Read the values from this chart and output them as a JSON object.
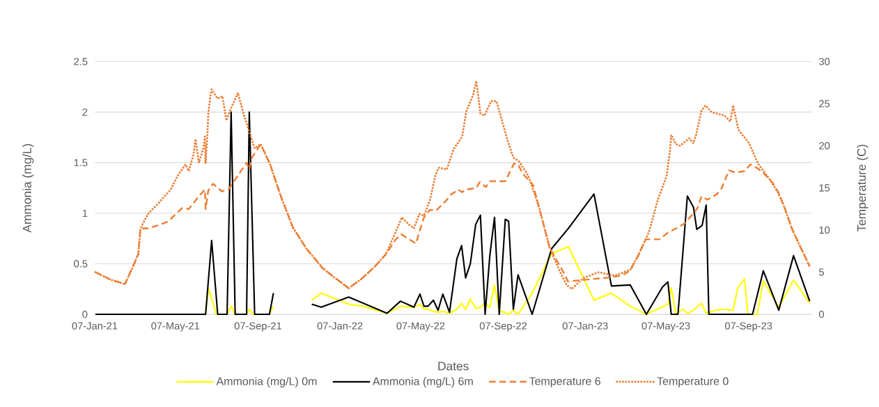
{
  "chart_data": {
    "type": "line",
    "xlabel": "Dates",
    "ylabel": "Ammonia (mg/L)",
    "y2label": "Temperature (C)",
    "xlim": [
      "2021-01-07",
      "2023-12-10"
    ],
    "xticks": [
      {
        "value": "2021-01-07",
        "label": "07-Jan-21"
      },
      {
        "value": "2021-05-07",
        "label": "07-May-21"
      },
      {
        "value": "2021-09-07",
        "label": "07-Sep-21"
      },
      {
        "value": "2022-01-07",
        "label": "07-Jan-22"
      },
      {
        "value": "2022-05-07",
        "label": "07-May-22"
      },
      {
        "value": "2022-09-07",
        "label": "07-Sep-22"
      },
      {
        "value": "2023-01-07",
        "label": "07-Jan-23"
      },
      {
        "value": "2023-05-07",
        "label": "07-May-23"
      },
      {
        "value": "2023-09-07",
        "label": "07-Sep-23"
      }
    ],
    "ylim": [
      0,
      2.5
    ],
    "yticks": [
      0,
      0.5,
      1,
      1.5,
      2,
      2.5
    ],
    "y2lim": [
      0,
      30
    ],
    "y2ticks": [
      0,
      5,
      10,
      15,
      20,
      25,
      30
    ],
    "grid": "y",
    "legend": "bottom",
    "series": [
      {
        "name": "Ammonia (mg/L) 0m",
        "color": "#ffff00",
        "line_style": "solid",
        "x": [
          "2021-01-08",
          "2021-06-21",
          "2021-06-25",
          "2021-07-07",
          "2021-07-23",
          "2021-07-29",
          "2021-08-04",
          "2021-08-21",
          "2021-08-25",
          "2021-08-31",
          "2021-09-24",
          "2021-09-30",
          "2021-10-29",
          "2021-11-26",
          "2021-12-10",
          "2022-01-20",
          "2022-02-10",
          "2022-03-18",
          "2022-04-07",
          "2022-04-27",
          "2022-05-06",
          "2022-05-12",
          "2022-05-18",
          "2022-05-26",
          "2022-06-02",
          "2022-06-09",
          "2022-06-19",
          "2022-06-30",
          "2022-07-07",
          "2022-07-13",
          "2022-07-20",
          "2022-07-28",
          "2022-08-04",
          "2022-08-11",
          "2022-08-18",
          "2022-08-25",
          "2022-09-01",
          "2022-09-10",
          "2022-09-15",
          "2022-09-22",
          "2022-09-29",
          "2022-10-20",
          "2022-11-18",
          "2022-12-13",
          "2023-01-20",
          "2023-02-15",
          "2023-03-15",
          "2023-04-08",
          "2023-05-10",
          "2023-05-15",
          "2023-05-22",
          "2023-06-01",
          "2023-06-09",
          "2023-06-17",
          "2023-06-29",
          "2023-07-06",
          "2023-07-20",
          "2023-08-02",
          "2023-08-15",
          "2023-08-22",
          "2023-09-01",
          "2023-09-06",
          "2023-09-20",
          "2023-09-29",
          "2023-10-22",
          "2023-11-13",
          "2023-12-07"
        ],
        "values": [
          0,
          0,
          0.26,
          0,
          0,
          0.08,
          0,
          0,
          0.05,
          0,
          0,
          0.08,
          null,
          0.14,
          0.21,
          0.1,
          0.08,
          0.01,
          0.08,
          0.07,
          0.1,
          0.05,
          0.05,
          0.03,
          0.02,
          0.03,
          0.01,
          0.05,
          0.11,
          0.05,
          0.15,
          0.06,
          0.07,
          0.11,
          0.07,
          0.29,
          0.03,
          0.02,
          0,
          0.04,
          0,
          0.21,
          0.6,
          0.67,
          0.14,
          0.21,
          0.08,
          0,
          0.1,
          0.26,
          0,
          0.05,
          0.01,
          0.04,
          0.11,
          0.01,
          0.04,
          0.05,
          0.04,
          0.26,
          0.35,
          0,
          0,
          0.33,
          0.07,
          0.34,
          0.11
        ]
      },
      {
        "name": "Ammonia (mg/L) 6m",
        "color": "#000000",
        "line_style": "solid",
        "x": [
          "2021-01-08",
          "2021-06-21",
          "2021-06-30",
          "2021-07-09",
          "2021-07-23",
          "2021-07-29",
          "2021-08-04",
          "2021-08-21",
          "2021-08-25",
          "2021-09-02",
          "2021-09-24",
          "2021-09-30",
          "2021-10-29",
          "2021-11-26",
          "2021-12-10",
          "2022-01-20",
          "2022-03-18",
          "2022-04-07",
          "2022-04-27",
          "2022-05-06",
          "2022-05-12",
          "2022-05-18",
          "2022-05-26",
          "2022-06-02",
          "2022-06-09",
          "2022-06-19",
          "2022-06-30",
          "2022-07-07",
          "2022-07-13",
          "2022-07-20",
          "2022-07-28",
          "2022-08-04",
          "2022-08-11",
          "2022-08-18",
          "2022-08-25",
          "2022-09-01",
          "2022-09-10",
          "2022-09-15",
          "2022-09-22",
          "2022-09-29",
          "2022-10-20",
          "2022-11-18",
          "2022-12-13",
          "2023-01-20",
          "2023-02-15",
          "2023-03-15",
          "2023-04-08",
          "2023-05-02",
          "2023-05-10",
          "2023-05-15",
          "2023-05-25",
          "2023-06-08",
          "2023-06-17",
          "2023-06-22",
          "2023-06-30",
          "2023-07-06",
          "2023-07-10",
          "2023-09-13",
          "2023-09-29",
          "2023-10-22",
          "2023-11-13",
          "2023-12-07"
        ],
        "values": [
          0,
          0,
          0.73,
          0,
          0,
          2.0,
          0,
          0,
          2.0,
          0,
          0,
          0.21,
          null,
          0.1,
          0.07,
          0.17,
          0.01,
          0.13,
          0.07,
          0.2,
          0.08,
          0.08,
          0.14,
          0.04,
          0.2,
          0.02,
          0.55,
          0.68,
          0.36,
          0.5,
          0.89,
          0.98,
          0,
          0.58,
          0.96,
          0,
          0.94,
          0.92,
          0.05,
          0.39,
          0,
          0.65,
          0.85,
          1.19,
          0.28,
          0.29,
          0,
          0.27,
          0.32,
          0,
          0,
          1.17,
          1.06,
          0.84,
          0.88,
          1.08,
          0,
          0,
          0.43,
          0.04,
          0.58,
          0.13
        ]
      },
      {
        "name": "Temperature 6",
        "color": "#ed7d31",
        "line_style": "dashed",
        "axis": "y2",
        "x": [
          "2021-01-08",
          "2021-01-31",
          "2021-02-21",
          "2021-03-04",
          "2021-03-13",
          "2021-03-16",
          "2021-03-29",
          "2021-04-26",
          "2021-05-17",
          "2021-05-27",
          "2021-06-13",
          "2021-06-20",
          "2021-06-21",
          "2021-06-25",
          "2021-07-02",
          "2021-07-15",
          "2021-07-25",
          "2021-08-04",
          "2021-08-21",
          "2021-08-25",
          "2021-08-29",
          "2021-09-11",
          "2021-09-25",
          "2021-10-11",
          "2021-10-29",
          "2021-11-18",
          "2021-12-12",
          "2021-12-31",
          "2022-01-20",
          "2022-02-08",
          "2022-02-27",
          "2022-03-16",
          "2022-03-31",
          "2022-04-08",
          "2022-04-20",
          "2022-04-30",
          "2022-05-06",
          "2022-05-12",
          "2022-05-21",
          "2022-05-30",
          "2022-06-14",
          "2022-06-21",
          "2022-07-02",
          "2022-07-08",
          "2022-07-13",
          "2022-07-29",
          "2022-08-03",
          "2022-08-12",
          "2022-08-18",
          "2022-09-10",
          "2022-09-23",
          "2022-09-29",
          "2022-10-06",
          "2022-10-21",
          "2022-10-30",
          "2022-11-15",
          "2022-11-27",
          "2022-12-07",
          "2022-12-12",
          "2023-01-07",
          "2023-02-04",
          "2023-03-03",
          "2023-03-15",
          "2023-03-27",
          "2023-04-07",
          "2023-04-28",
          "2023-05-10",
          "2023-05-25",
          "2023-06-04",
          "2023-06-15",
          "2023-06-23",
          "2023-06-29",
          "2023-07-08",
          "2023-07-21",
          "2023-07-28",
          "2023-08-09",
          "2023-08-19",
          "2023-09-01",
          "2023-09-10",
          "2023-09-21",
          "2023-10-04",
          "2023-10-14",
          "2023-10-22",
          "2023-10-30",
          "2023-11-11",
          "2023-11-22",
          "2023-12-07"
        ],
        "values": [
          5.0,
          4.1,
          3.6,
          5.5,
          7.2,
          10.2,
          10.2,
          11.0,
          12.6,
          12.5,
          14.2,
          14.8,
          12.5,
          14.7,
          15.5,
          14.6,
          14.8,
          16.0,
          18.0,
          17.2,
          18.6,
          20.2,
          17.8,
          14.0,
          10.3,
          7.8,
          5.5,
          4.3,
          3.1,
          4.2,
          5.6,
          7.1,
          8.9,
          9.5,
          8.9,
          8.4,
          10.0,
          11.5,
          12.4,
          12.3,
          13.5,
          14.2,
          14.8,
          14.5,
          14.8,
          15.0,
          15.7,
          15.1,
          15.8,
          15.8,
          17.9,
          17.8,
          16.7,
          15.4,
          12.8,
          7.9,
          6.2,
          4.8,
          3.9,
          4.1,
          4.3,
          4.6,
          5.2,
          7.0,
          8.9,
          8.9,
          9.7,
          10.3,
          10.8,
          11.8,
          12.6,
          14.0,
          13.6,
          14.2,
          14.8,
          17.1,
          16.8,
          17.0,
          17.8,
          17.3,
          16.4,
          15.5,
          14.4,
          12.8,
          10.1,
          8.2,
          5.7
        ]
      },
      {
        "name": "Temperature 0",
        "color": "#ed7d31",
        "line_style": "dotted",
        "axis": "y2",
        "x": [
          "2021-01-08",
          "2021-01-31",
          "2021-02-21",
          "2021-03-04",
          "2021-03-13",
          "2021-03-16",
          "2021-03-27",
          "2021-04-13",
          "2021-04-30",
          "2021-05-10",
          "2021-05-22",
          "2021-05-27",
          "2021-06-03",
          "2021-06-06",
          "2021-06-11",
          "2021-06-18",
          "2021-06-20",
          "2021-06-21",
          "2021-06-24",
          "2021-06-25",
          "2021-06-28",
          "2021-06-30",
          "2021-07-09",
          "2021-07-16",
          "2021-07-22",
          "2021-07-28",
          "2021-08-08",
          "2021-08-18",
          "2021-08-29",
          "2021-09-02",
          "2021-09-11",
          "2021-09-25",
          "2021-10-11",
          "2021-10-29",
          "2021-11-18",
          "2021-12-12",
          "2021-12-31",
          "2022-01-20",
          "2022-02-08",
          "2022-02-27",
          "2022-03-16",
          "2022-03-31",
          "2022-04-09",
          "2022-04-18",
          "2022-04-27",
          "2022-05-05",
          "2022-05-12",
          "2022-05-21",
          "2022-05-29",
          "2022-06-03",
          "2022-06-15",
          "2022-06-25",
          "2022-07-08",
          "2022-07-14",
          "2022-07-24",
          "2022-07-29",
          "2022-08-04",
          "2022-08-10",
          "2022-08-20",
          "2022-08-28",
          "2022-09-04",
          "2022-09-14",
          "2022-09-22",
          "2022-09-30",
          "2022-10-14",
          "2022-10-30",
          "2022-11-15",
          "2022-11-29",
          "2022-12-10",
          "2022-12-18",
          "2023-01-04",
          "2023-01-27",
          "2023-02-20",
          "2023-03-15",
          "2023-03-27",
          "2023-04-12",
          "2023-04-25",
          "2023-05-08",
          "2023-05-13",
          "2023-05-15",
          "2023-05-22",
          "2023-05-28",
          "2023-06-11",
          "2023-06-17",
          "2023-06-21",
          "2023-06-29",
          "2023-07-05",
          "2023-07-14",
          "2023-08-02",
          "2023-08-11",
          "2023-08-15",
          "2023-08-23",
          "2023-09-08",
          "2023-09-21",
          "2023-10-06",
          "2023-10-20",
          "2023-10-30",
          "2023-11-11",
          "2023-11-22",
          "2023-12-07"
        ],
        "values": [
          5.0,
          4.1,
          3.6,
          5.5,
          7.2,
          10.2,
          11.9,
          13.3,
          14.8,
          16.4,
          17.8,
          17.0,
          19.0,
          20.8,
          18.0,
          19.8,
          21.1,
          17.9,
          21.8,
          23.8,
          25.8,
          26.7,
          25.6,
          25.9,
          23.0,
          24.3,
          26.3,
          23.4,
          20.7,
          19.7,
          20.2,
          17.8,
          14.0,
          10.3,
          7.8,
          5.5,
          4.3,
          3.1,
          4.2,
          5.6,
          7.1,
          9.8,
          11.5,
          10.8,
          10.2,
          11.9,
          11.7,
          13.6,
          16.5,
          17.4,
          17.2,
          19.6,
          21.1,
          24.1,
          26.0,
          27.7,
          23.8,
          23.6,
          25.3,
          25.3,
          23.3,
          20.5,
          18.6,
          18.2,
          16.5,
          12.8,
          7.9,
          5.3,
          3.5,
          3.0,
          4.3,
          5.0,
          4.6,
          5.3,
          7.0,
          9.8,
          13.6,
          16.4,
          19.3,
          21.3,
          20.2,
          20.0,
          20.9,
          20.3,
          21.3,
          24.2,
          24.8,
          24.0,
          23.6,
          22.9,
          24.8,
          21.9,
          20.3,
          17.9,
          16.3,
          14.6,
          12.8,
          10.1,
          8.2,
          5.7
        ]
      }
    ]
  }
}
